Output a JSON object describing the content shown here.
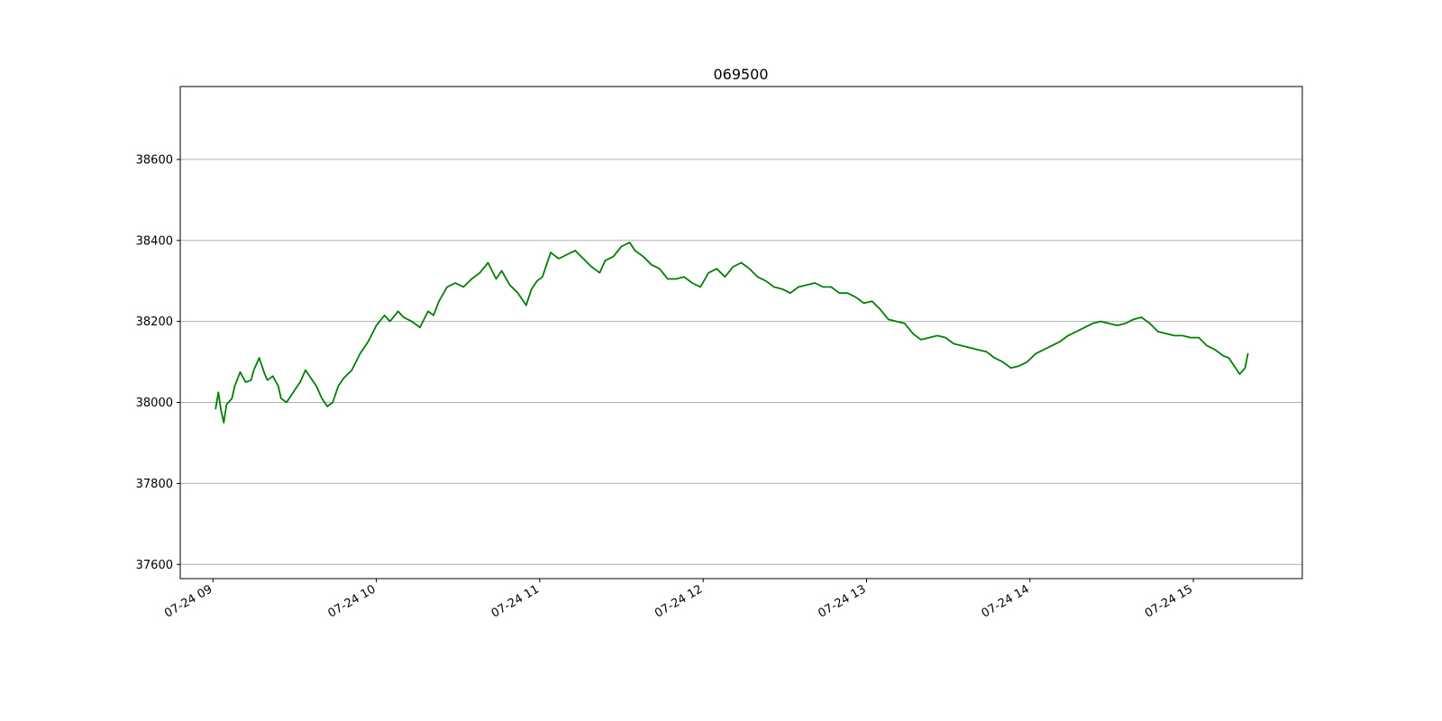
{
  "chart_data": {
    "type": "line",
    "title": "069500",
    "xlabel": "",
    "ylabel": "",
    "grid": "y-axis only",
    "x_range": [
      "07-24 08:48",
      "07-24 15:40"
    ],
    "ylim": [
      37565,
      38780
    ],
    "y_ticks": [
      37600,
      37800,
      38000,
      38200,
      38400,
      38600
    ],
    "x_ticks": [
      {
        "time": "09:00",
        "label": "07-24 09"
      },
      {
        "time": "10:00",
        "label": "07-24 10"
      },
      {
        "time": "11:00",
        "label": "07-24 11"
      },
      {
        "time": "12:00",
        "label": "07-24 12"
      },
      {
        "time": "13:00",
        "label": "07-24 13"
      },
      {
        "time": "14:00",
        "label": "07-24 14"
      },
      {
        "time": "15:00",
        "label": "07-24 15"
      }
    ],
    "series": [
      {
        "color": "#008000",
        "x": [
          "09:01",
          "09:02",
          "09:03",
          "09:04",
          "09:05",
          "09:07",
          "09:08",
          "09:10",
          "09:12",
          "09:14",
          "09:15",
          "09:17",
          "09:19",
          "09:20",
          "09:22",
          "09:24",
          "09:25",
          "09:27",
          "09:29",
          "09:30",
          "09:32",
          "09:34",
          "09:36",
          "09:38",
          "09:40",
          "09:42",
          "09:44",
          "09:46",
          "09:48",
          "09:51",
          "09:54",
          "09:57",
          "10:00",
          "10:03",
          "10:05",
          "10:08",
          "10:10",
          "10:13",
          "10:16",
          "10:19",
          "10:21",
          "10:23",
          "10:26",
          "10:29",
          "10:32",
          "10:35",
          "10:38",
          "10:41",
          "10:44",
          "10:46",
          "10:49",
          "10:52",
          "10:55",
          "10:57",
          "10:59",
          "11:01",
          "11:04",
          "11:07",
          "11:10",
          "11:13",
          "11:16",
          "11:19",
          "11:22",
          "11:24",
          "11:27",
          "11:30",
          "11:33",
          "11:35",
          "11:38",
          "11:41",
          "11:44",
          "11:47",
          "11:50",
          "11:53",
          "11:56",
          "11:59",
          "12:02",
          "12:05",
          "12:08",
          "12:11",
          "12:14",
          "12:17",
          "12:20",
          "12:23",
          "12:26",
          "12:29",
          "12:32",
          "12:35",
          "12:38",
          "12:41",
          "12:44",
          "12:47",
          "12:50",
          "12:53",
          "12:56",
          "12:59",
          "13:02",
          "13:05",
          "13:08",
          "13:11",
          "13:14",
          "13:17",
          "13:20",
          "13:23",
          "13:26",
          "13:29",
          "13:32",
          "13:35",
          "13:38",
          "13:41",
          "13:44",
          "13:47",
          "13:50",
          "13:53",
          "13:56",
          "13:59",
          "14:02",
          "14:05",
          "14:08",
          "14:11",
          "14:14",
          "14:17",
          "14:20",
          "14:23",
          "14:26",
          "14:29",
          "14:32",
          "14:35",
          "14:38",
          "14:41",
          "14:44",
          "14:47",
          "14:50",
          "14:53",
          "14:56",
          "14:59",
          "15:02",
          "15:05",
          "15:08",
          "15:11",
          "15:13",
          "15:15",
          "15:17",
          "15:19",
          "15:20"
        ],
        "y": [
          37985,
          38025,
          37980,
          37950,
          37995,
          38010,
          38040,
          38075,
          38050,
          38055,
          38080,
          38110,
          38070,
          38055,
          38065,
          38040,
          38010,
          38000,
          38020,
          38030,
          38050,
          38080,
          38060,
          38040,
          38010,
          37990,
          38000,
          38040,
          38060,
          38080,
          38120,
          38150,
          38190,
          38215,
          38200,
          38225,
          38210,
          38200,
          38185,
          38225,
          38215,
          38250,
          38285,
          38295,
          38285,
          38305,
          38320,
          38345,
          38305,
          38325,
          38290,
          38270,
          38240,
          38280,
          38300,
          38310,
          38370,
          38355,
          38365,
          38375,
          38355,
          38335,
          38320,
          38350,
          38360,
          38385,
          38395,
          38375,
          38360,
          38340,
          38330,
          38305,
          38305,
          38310,
          38295,
          38285,
          38320,
          38330,
          38310,
          38335,
          38345,
          38330,
          38310,
          38300,
          38285,
          38280,
          38270,
          38285,
          38290,
          38295,
          38285,
          38285,
          38270,
          38270,
          38260,
          38245,
          38250,
          38230,
          38205,
          38200,
          38195,
          38170,
          38155,
          38160,
          38165,
          38160,
          38145,
          38140,
          38135,
          38130,
          38125,
          38110,
          38100,
          38085,
          38090,
          38100,
          38120,
          38130,
          38140,
          38150,
          38165,
          38175,
          38185,
          38195,
          38200,
          38195,
          38190,
          38195,
          38205,
          38210,
          38195,
          38175,
          38170,
          38165,
          38165,
          38160,
          38160,
          38140,
          38130,
          38115,
          38110,
          38090,
          38070,
          38085,
          38120
        ]
      }
    ]
  }
}
